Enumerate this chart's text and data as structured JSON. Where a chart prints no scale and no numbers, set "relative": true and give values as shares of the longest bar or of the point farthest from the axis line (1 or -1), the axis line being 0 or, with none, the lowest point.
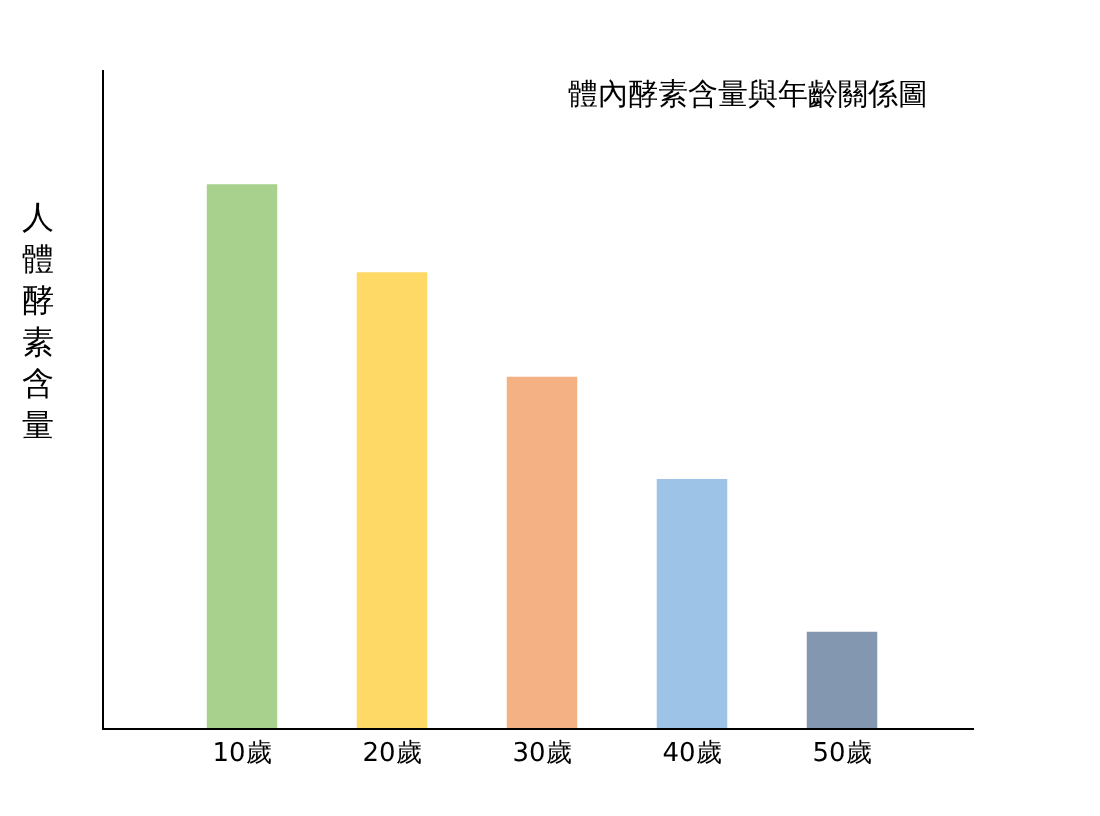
{
  "chart_data": {
    "type": "bar",
    "title": "體內酵素含量與年齡關係圖",
    "ylabel": "人體酵素含量",
    "relative": true,
    "categories": [
      "10歲",
      "20歲",
      "30歲",
      "40歲",
      "50歲"
    ],
    "values": [
      1,
      0.838,
      0.646,
      0.458,
      0.177
    ],
    "colors": [
      "#a9d18e",
      "#ffd966",
      "#f4b183",
      "#9dc3e6",
      "#8497b0"
    ]
  }
}
